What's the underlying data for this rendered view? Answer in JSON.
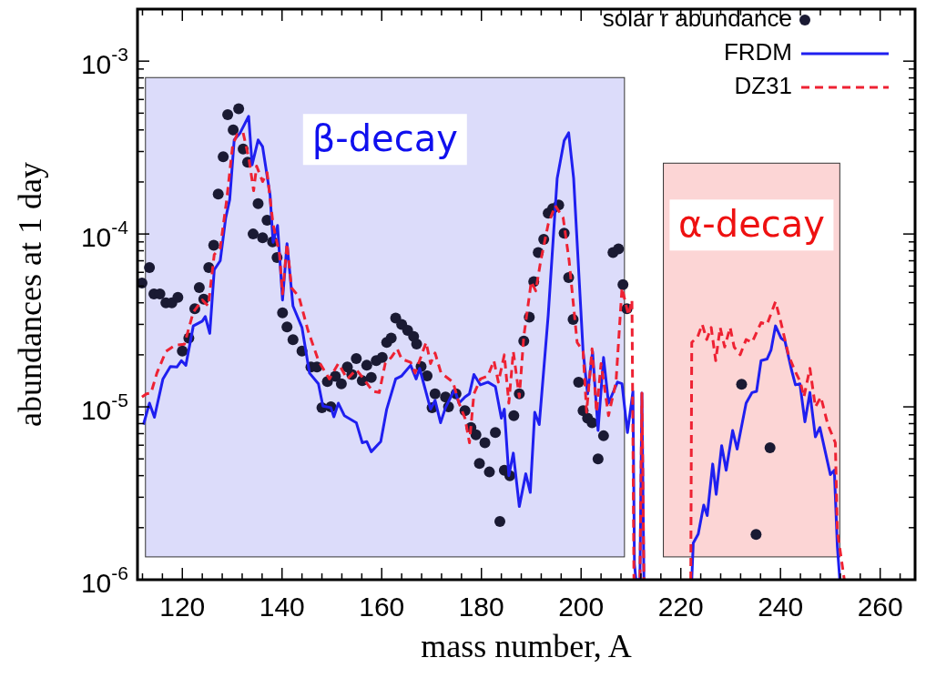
{
  "chart_data": {
    "type": "line",
    "xlabel": "mass number, A",
    "ylabel": "abundances at 1 day",
    "log": "y",
    "legend": "top right",
    "xlim": [
      111,
      267
    ],
    "ylim": [
      1e-06,
      0.002
    ],
    "xticks": [
      {
        "value": 112,
        "label": null
      },
      {
        "value": 116,
        "label": null
      },
      120,
      {
        "value": 124,
        "label": null
      },
      {
        "value": 128,
        "label": null
      },
      {
        "value": 132,
        "label": null
      },
      {
        "value": 136,
        "label": null
      },
      140,
      {
        "value": 144,
        "label": null
      },
      {
        "value": 148,
        "label": null
      },
      {
        "value": 152,
        "label": null
      },
      {
        "value": 156,
        "label": null
      },
      160,
      {
        "value": 164,
        "label": null
      },
      {
        "value": 168,
        "label": null
      },
      {
        "value": 172,
        "label": null
      },
      {
        "value": 176,
        "label": null
      },
      180,
      {
        "value": 184,
        "label": null
      },
      {
        "value": 188,
        "label": null
      },
      {
        "value": 192,
        "label": null
      },
      {
        "value": 196,
        "label": null
      },
      200,
      {
        "value": 204,
        "label": null
      },
      {
        "value": 208,
        "label": null
      },
      {
        "value": 212,
        "label": null
      },
      {
        "value": 216,
        "label": null
      },
      220,
      {
        "value": 224,
        "label": null
      },
      {
        "value": 228,
        "label": null
      },
      {
        "value": 232,
        "label": null
      },
      {
        "value": 236,
        "label": null
      },
      240,
      {
        "value": 244,
        "label": null
      },
      {
        "value": 248,
        "label": null
      },
      {
        "value": 252,
        "label": null
      },
      {
        "value": 256,
        "label": null
      },
      260,
      {
        "value": 264,
        "label": null
      }
    ],
    "yticks": [
      {
        "value": 1e-06,
        "label": "10$^{-6}$"
      },
      {
        "value": 2e-06,
        "label": null
      },
      {
        "value": 3e-06,
        "label": null
      },
      {
        "value": 4e-06,
        "label": null
      },
      {
        "value": 5e-06,
        "label": null
      },
      {
        "value": 6e-06,
        "label": null
      },
      {
        "value": 7e-06,
        "label": null
      },
      {
        "value": 8e-06,
        "label": null
      },
      {
        "value": 9e-06,
        "label": null
      },
      {
        "value": 1e-05,
        "label": "10$^{-5}$"
      },
      {
        "value": 2e-05,
        "label": null
      },
      {
        "value": 3e-05,
        "label": null
      },
      {
        "value": 4e-05,
        "label": null
      },
      {
        "value": 5e-05,
        "label": null
      },
      {
        "value": 6e-05,
        "label": null
      },
      {
        "value": 7e-05,
        "label": null
      },
      {
        "value": 8e-05,
        "label": null
      },
      {
        "value": 9e-05,
        "label": null
      },
      {
        "value": 0.0001,
        "label": "10$^{-4}$"
      },
      {
        "value": 0.0002,
        "label": null
      },
      {
        "value": 0.0003,
        "label": null
      },
      {
        "value": 0.0004,
        "label": null
      },
      {
        "value": 0.0005,
        "label": null
      },
      {
        "value": 0.0006,
        "label": null
      },
      {
        "value": 0.0007,
        "label": null
      },
      {
        "value": 0.0008,
        "label": null
      },
      {
        "value": 0.0009,
        "label": null
      },
      {
        "value": 0.001,
        "label": "10$^{-3}$"
      },
      {
        "value": 0.002,
        "label": null
      }
    ],
    "bands": [
      {
        "axis": "x",
        "from": 112.6,
        "to": 208.7,
        "label": "β-decay",
        "color": "#dcdcfa"
      },
      {
        "axis": "x",
        "from": 216.5,
        "to": 251.9,
        "label": "α-decay",
        "color": "#fcd5d5"
      }
    ],
    "series": [
      {
        "name": "solar r abundance",
        "type": "scatter",
        "marker": "circle",
        "color": "#1a1a33",
        "x": [
          111.9,
          113.4,
          114.3,
          115.5,
          116.7,
          117.9,
          119.1,
          120,
          121.3,
          122.5,
          123.4,
          124.3,
          125.3,
          126.3,
          127.2,
          128.2,
          129.1,
          130.2,
          131.3,
          132.2,
          133.1,
          134.2,
          135.2,
          136.1,
          137,
          138.1,
          139,
          140.1,
          141,
          142.2,
          144,
          145.8,
          147,
          148,
          149.1,
          149.8,
          150.7,
          151.9,
          153.1,
          154,
          154.9,
          156.1,
          157,
          157.9,
          158.9,
          160.1,
          161,
          161.9,
          162.8,
          164,
          165.2,
          166.4,
          167,
          167.9,
          169.1,
          170.1,
          170.7,
          172.8,
          173.4,
          174.9,
          176.7,
          177.9,
          178.9,
          179.6,
          180.7,
          181.6,
          182.8,
          183.7,
          184.6,
          185.7,
          186.5,
          187.6,
          188.5,
          189.6,
          190.5,
          191.4,
          192.5,
          193.4,
          194.3,
          195.5,
          196.6,
          197.5,
          198.4,
          199.5,
          200.4,
          201.3,
          202.2,
          203.4,
          204.5,
          206.4,
          207.5,
          208.4,
          209.2,
          232.2,
          235.1,
          237.9
        ],
        "values": [
          5.2e-05,
          6.4e-05,
          4.5e-05,
          4.5e-05,
          4e-05,
          4e-05,
          4.3e-05,
          2.1e-05,
          2.5e-05,
          3.7e-05,
          4.9e-05,
          4.2e-05,
          6.4e-05,
          8.6e-05,
          0.00017,
          0.00028,
          0.00049,
          0.0004,
          0.00053,
          0.00031,
          0.00026,
          0.0001,
          0.00015,
          9.5e-05,
          0.00012,
          9e-05,
          7.3e-05,
          3.5e-05,
          2.9e-05,
          2.45e-05,
          2.1e-05,
          1.7e-05,
          1.7e-05,
          9.9e-06,
          1.4e-05,
          1e-05,
          1.5e-05,
          1.36e-05,
          1.7e-05,
          1.54e-05,
          1.9e-05,
          1.42e-05,
          1.74e-05,
          1.48e-05,
          1.85e-05,
          1.93e-05,
          2.36e-05,
          2.5e-05,
          3.26e-05,
          3e-05,
          2.77e-05,
          2.55e-05,
          2.31e-05,
          1.71e-05,
          1.51e-05,
          9.9e-06,
          1.19e-05,
          1.14e-05,
          1e-05,
          1.19e-05,
          9.5e-06,
          7.6e-06,
          6.9e-06,
          4.7e-06,
          6.2e-06,
          4.2e-06,
          7.1e-06,
          2.17e-06,
          4.3e-06,
          4e-06,
          8.9e-06,
          1.19e-05,
          2.4e-05,
          3.3e-05,
          5.3e-05,
          7.8e-05,
          9.3e-05,
          0.000132,
          0.00014,
          0.000147,
          0.000101,
          5.6e-05,
          3.2e-05,
          1.39e-05,
          9.5e-06,
          8.6e-06,
          8.1e-06,
          5e-06,
          6.8e-06,
          7.8e-05,
          8.2e-05,
          5.1e-05,
          3.7e-05,
          1.35e-05,
          1.83e-06,
          5.8e-06
        ]
      },
      {
        "name": "FRDM",
        "line_style": "solid",
        "color": "#1f1ff0",
        "x": [
          112.2,
          113.4,
          114.4,
          116.1,
          117.6,
          118.9,
          119.8,
          120.7,
          122.2,
          124,
          124.6,
          125.5,
          126.4,
          127.6,
          128.7,
          129.5,
          130.4,
          131.6,
          133.3,
          134,
          135.2,
          136.1,
          137.6,
          138.2,
          139.1,
          140.1,
          141,
          142.2,
          144,
          145.5,
          147.3,
          148.2,
          149.8,
          150.4,
          151.3,
          152.5,
          154.9,
          156.1,
          157,
          157.9,
          159.8,
          161,
          162.8,
          164,
          165.8,
          166.9,
          167.6,
          169.8,
          170.7,
          171.8,
          172.8,
          174.6,
          175.5,
          176.7,
          177.6,
          178.5,
          179.8,
          181.3,
          182.8,
          184,
          184.6,
          185.5,
          186.4,
          187.6,
          188.9,
          189.8,
          190.7,
          191.6,
          193.4,
          195.2,
          196.6,
          197.5,
          198.5,
          200.4,
          201.3,
          202.3,
          203.4,
          204.5,
          205.5,
          207.3,
          208.2,
          209.3,
          210.4,
          210.7,
          211,
          211.8,
          212.2,
          212.6,
          216,
          222.2,
          222.5,
          223.5,
          224.6,
          225.3,
          226.4,
          227.1,
          228.2,
          229.1,
          230.4,
          231.3,
          233.1,
          234.3,
          235.2,
          236.1,
          237.3,
          238.1,
          239,
          240.1,
          240.9,
          242.2,
          243,
          243.9,
          244.9,
          245.9,
          247,
          247.9,
          250,
          250.8,
          251.4,
          251.9
        ],
        "values": [
          7.9e-06,
          1.05e-05,
          8.7e-06,
          1.45e-05,
          1.71e-05,
          1.7e-05,
          1.85e-05,
          1.74e-05,
          2.94e-05,
          3.13e-05,
          3.33e-05,
          2.66e-05,
          6.2e-05,
          7e-05,
          0.000124,
          0.000158,
          0.00035,
          0.000385,
          0.00048,
          0.000251,
          0.00035,
          0.00032,
          0.000168,
          8.95e-05,
          0.000112,
          4.15e-05,
          8.8e-05,
          3.83e-05,
          2.88e-05,
          1.57e-05,
          1.36e-05,
          1.01e-05,
          9.9e-06,
          8.75e-06,
          1.05e-05,
          8.9e-06,
          8.1e-06,
          6.2e-06,
          6.3e-06,
          5.5e-06,
          6.3e-06,
          9.7e-06,
          1.45e-05,
          1.51e-05,
          1.74e-05,
          1.45e-05,
          1.67e-05,
          9.7e-06,
          1.09e-05,
          8.1e-06,
          9.9e-06,
          1.26e-05,
          1.05e-05,
          1.14e-05,
          1.19e-05,
          1.54e-05,
          1.34e-05,
          1.39e-05,
          1.31e-05,
          8.6e-06,
          9.7e-06,
          4e-06,
          5.4e-06,
          2.65e-06,
          4.1e-06,
          3.2e-06,
          9.3e-06,
          7.9e-06,
          3.39e-05,
          0.00021,
          0.000347,
          0.000385,
          0.00021,
          2.09e-05,
          1.19e-05,
          2.09e-05,
          7.3e-06,
          1.93e-05,
          1.05e-05,
          1.39e-05,
          1.36e-05,
          7.1e-06,
          1.23e-05,
          1.23e-06,
          1e-06,
          1e-06,
          1.2e-05,
          1e-06,
          null,
          1e-06,
          1.63e-06,
          1.84e-06,
          2.7e-06,
          2.35e-06,
          4.67e-06,
          3.12e-06,
          5.96e-06,
          4.3e-06,
          7.3e-06,
          5.7e-06,
          1.05e-05,
          1.21e-05,
          1.23e-05,
          1.85e-05,
          1.89e-05,
          2.13e-05,
          2.94e-05,
          2.5e-05,
          2.4e-05,
          1.64e-05,
          1.34e-05,
          1.36e-05,
          8.2e-06,
          1.21e-05,
          6.7e-06,
          7.6e-06,
          4.06e-06,
          4.3e-06,
          1.57e-06,
          1e-06
        ]
      },
      {
        "name": "DZ31",
        "line_style": "dashed",
        "color": "#ee2233",
        "x": [
          111.9,
          112.8,
          113.7,
          114.9,
          116.7,
          118.5,
          120.4,
          122.2,
          124,
          125.2,
          126.4,
          127.6,
          128.9,
          130.1,
          131,
          132.2,
          133.4,
          134.3,
          134.9,
          136.1,
          137,
          138.2,
          139.5,
          140.1,
          141,
          141.9,
          143.4,
          145.2,
          147.3,
          149.5,
          151.3,
          153.1,
          154.9,
          156.4,
          158.2,
          159.5,
          160.7,
          161.9,
          163.1,
          164,
          165.8,
          166.7,
          168.9,
          169.8,
          170.7,
          171.9,
          174.3,
          175.5,
          176.7,
          177.6,
          178.5,
          179.8,
          181.3,
          182.5,
          183.4,
          184.6,
          185.5,
          186.4,
          187.6,
          188.5,
          190,
          190.9,
          191.9,
          193.4,
          194.8,
          196.4,
          197.6,
          199.2,
          200.4,
          201.1,
          202.2,
          203.1,
          204,
          205.5,
          207,
          208.2,
          209.5,
          210.2,
          210.6,
          211.8,
          212.2,
          212.6,
          216,
          222,
          222.2,
          223.4,
          224.3,
          225.2,
          226.1,
          227,
          227.9,
          228.8,
          229.9,
          230.7,
          231.9,
          233.1,
          234.3,
          236.1,
          237.3,
          239,
          240.1,
          241.6,
          242.8,
          244,
          244.7,
          245.9,
          247,
          248.1,
          249.5,
          251,
          251.4,
          252.8
        ],
        "values": [
          1.14e-05,
          1.19e-05,
          1.2e-05,
          1.57e-05,
          2.09e-05,
          2.27e-05,
          2.3e-05,
          3.53e-05,
          4.15e-05,
          3.83e-05,
          7.6e-05,
          8.3e-05,
          0.000158,
          0.000327,
          0.000377,
          0.000385,
          0.000267,
          0.000178,
          0.000247,
          0.000201,
          0.000227,
          0.000114,
          7.6e-05,
          4.5e-05,
          8.8e-05,
          4.88e-05,
          4.33e-05,
          2.77e-05,
          1.85e-05,
          1.45e-05,
          1.78e-05,
          1.45e-05,
          1.64e-05,
          1.45e-05,
          1.23e-05,
          1.21e-05,
          1.78e-05,
          1.93e-05,
          2.17e-05,
          1.89e-05,
          1.81e-05,
          1.57e-05,
          2.36e-05,
          1.78e-05,
          2.05e-05,
          1.57e-05,
          1.39e-05,
          1.05e-05,
          8.6e-06,
          6.2e-06,
          1.19e-05,
          1.45e-05,
          1.51e-05,
          1.85e-05,
          1.39e-05,
          2e-05,
          1.05e-05,
          2.09e-05,
          1.14e-05,
          2.55e-05,
          5.3e-05,
          4.69e-05,
          7e-05,
          0.000114,
          0.000146,
          0.000124,
          7e-05,
          2.36e-05,
          2.09e-05,
          9.3e-06,
          2.17e-05,
          9.3e-06,
          1.78e-05,
          8.9e-06,
          1.39e-05,
          4.88e-05,
          3.39e-05,
          4.15e-05,
          1e-06,
          1e-06,
          1.2e-05,
          1e-06,
          null,
          1e-06,
          2.36e-05,
          2.55e-05,
          3e-05,
          2.45e-05,
          2.88e-05,
          1.85e-05,
          2.88e-05,
          2.22e-05,
          2.88e-05,
          2.22e-05,
          2e-05,
          2.45e-05,
          2.36e-05,
          3.07e-05,
          3e-05,
          4.06e-05,
          3.07e-05,
          2e-05,
          1.64e-05,
          1.39e-05,
          1.14e-05,
          1.67e-05,
          1e-05,
          1.14e-05,
          7.9e-06,
          6.2e-06,
          1.92e-06,
          1e-06
        ]
      }
    ]
  }
}
